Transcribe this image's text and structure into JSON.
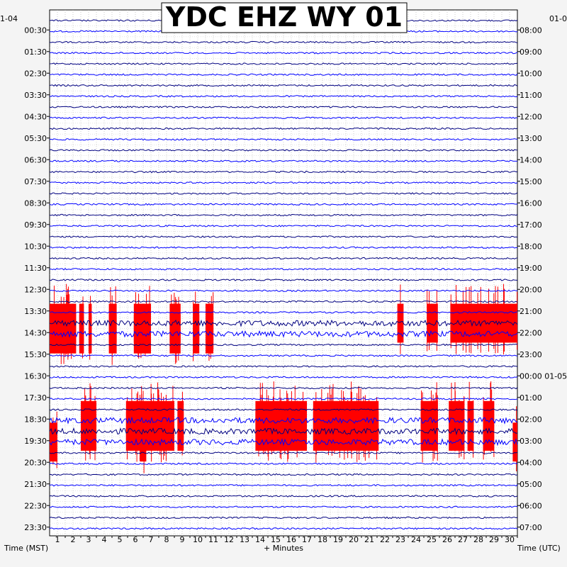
{
  "chart_data": {
    "type": "line",
    "title": "YDC EHZ WY 01",
    "xlabel": "+ Minutes",
    "left_axis_title": "Time (MST)",
    "right_axis_title": "Time (UTC)",
    "left_top_label": "1-04",
    "right_top_label": "01-0",
    "xlim": [
      0,
      30
    ],
    "x_ticks": [
      1,
      2,
      3,
      4,
      5,
      6,
      7,
      8,
      9,
      10,
      11,
      12,
      13,
      14,
      15,
      16,
      17,
      18,
      19,
      20,
      21,
      22,
      23,
      24,
      25,
      26,
      27,
      28,
      29,
      30
    ],
    "left_ticks": [
      "00:30",
      "01:30",
      "02:30",
      "03:30",
      "04:30",
      "05:30",
      "06:30",
      "07:30",
      "08:30",
      "09:30",
      "10:30",
      "11:30",
      "12:30",
      "13:30",
      "14:30",
      "15:30",
      "16:30",
      "17:30",
      "18:30",
      "19:30",
      "20:30",
      "21:30",
      "22:30",
      "23:30"
    ],
    "right_ticks": [
      "08:00",
      "09:00",
      "10:00",
      "11:00",
      "12:00",
      "13:00",
      "14:00",
      "15:00",
      "16:00",
      "17:00",
      "18:00",
      "19:00",
      "20:00",
      "21:00",
      "22:00",
      "23:00",
      "00:00 01-05",
      "01:00",
      "02:00",
      "03:00",
      "04:00",
      "05:00",
      "06:00",
      "07:00"
    ],
    "trace_count": 48,
    "trace_colors": [
      "#000080",
      "#0000ff"
    ],
    "clip_color": "#ff0000",
    "grid": true,
    "series": [
      {
        "traces": [
          28,
          29
        ],
        "clipped_segments": [
          [
            0.0,
            1.7
          ],
          [
            1.9,
            2.2
          ],
          [
            2.5,
            2.7
          ],
          [
            3.8,
            4.3
          ],
          [
            5.4,
            6.5
          ],
          [
            7.7,
            8.4
          ],
          [
            9.2,
            9.6
          ],
          [
            10.0,
            10.5
          ]
        ]
      },
      {
        "traces": [
          28
        ],
        "clipped_segments": [
          [
            22.3,
            22.7
          ],
          [
            24.2,
            24.9
          ],
          [
            25.7,
            30.0
          ]
        ]
      },
      {
        "traces": [
          37,
          38
        ],
        "clipped_segments": [
          [
            2.0,
            3.0
          ],
          [
            4.9,
            8.0
          ],
          [
            8.2,
            8.6
          ],
          [
            13.2,
            16.5
          ],
          [
            16.9,
            21.1
          ],
          [
            23.8,
            24.9
          ],
          [
            25.6,
            26.6
          ],
          [
            26.8,
            27.2
          ],
          [
            27.8,
            28.5
          ]
        ]
      },
      {
        "traces": [
          39
        ],
        "clipped_segments": [
          [
            0.0,
            0.5
          ],
          [
            5.8,
            6.2
          ],
          [
            29.7,
            30.0
          ]
        ]
      }
    ]
  }
}
